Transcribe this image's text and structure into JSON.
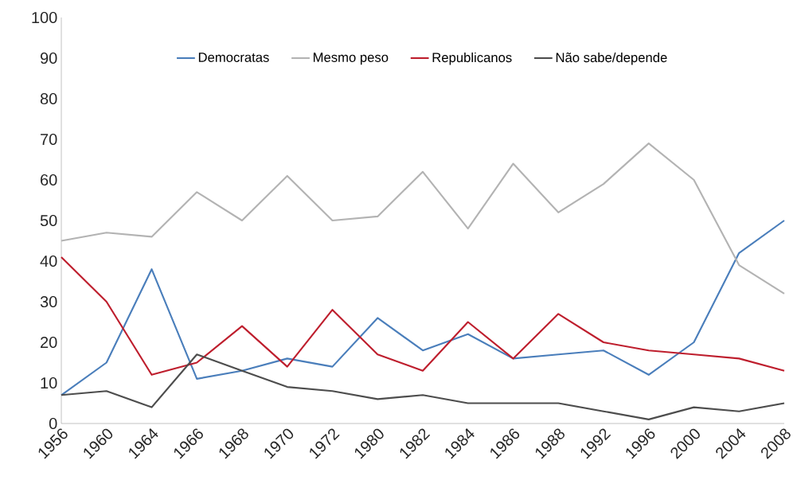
{
  "chart_data": {
    "type": "line",
    "categories": [
      "1956",
      "1960",
      "1964",
      "1966",
      "1968",
      "1970",
      "1972",
      "1980",
      "1982",
      "1984",
      "1986",
      "1988",
      "1992",
      "1996",
      "2000",
      "2004",
      "2008"
    ],
    "series": [
      {
        "name": "Democratas",
        "color": "#4a7ebb",
        "values": [
          7,
          15,
          38,
          11,
          13,
          16,
          14,
          26,
          18,
          22,
          16,
          17,
          18,
          12,
          20,
          42,
          50
        ]
      },
      {
        "name": "Mesmo peso",
        "color": "#b3b3b3",
        "values": [
          45,
          47,
          46,
          57,
          50,
          61,
          50,
          51,
          62,
          48,
          64,
          52,
          59,
          69,
          60,
          39,
          32
        ]
      },
      {
        "name": "Republicanos",
        "color": "#be1e2d",
        "values": [
          41,
          30,
          12,
          15,
          24,
          14,
          28,
          17,
          13,
          25,
          16,
          27,
          20,
          18,
          17,
          16,
          13
        ]
      },
      {
        "name": "Não sabe/depende",
        "color": "#4d4d4d",
        "values": [
          7,
          8,
          4,
          17,
          13,
          9,
          8,
          6,
          7,
          5,
          5,
          5,
          3,
          1,
          4,
          3,
          5
        ]
      }
    ],
    "ylim": [
      0,
      100
    ],
    "yticks": [
      0,
      10,
      20,
      30,
      40,
      50,
      60,
      70,
      80,
      90,
      100
    ],
    "grid": false,
    "legend": "top",
    "marker": "none",
    "line_style": "solid"
  }
}
